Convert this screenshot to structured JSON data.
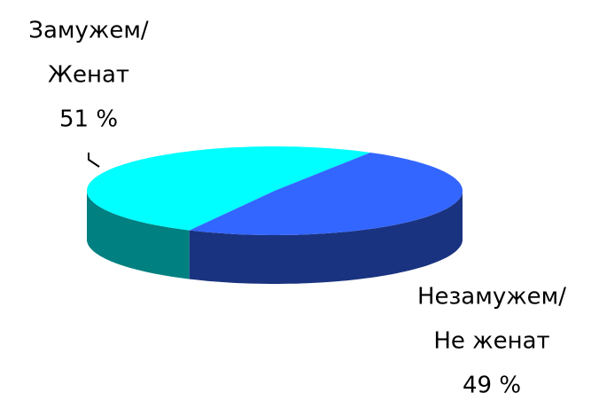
{
  "chart_data": {
    "type": "pie",
    "categories": [
      [
        "Замужем/",
        "Женат"
      ],
      [
        "Незамужем/",
        "Не женат"
      ]
    ],
    "values": [
      51,
      49
    ],
    "value_labels": [
      "51 %",
      "49 %"
    ],
    "colors": [
      "#00ffff",
      "#3366ff"
    ],
    "side_colors": [
      "#008080",
      "#1a3380"
    ],
    "three_d": true
  }
}
